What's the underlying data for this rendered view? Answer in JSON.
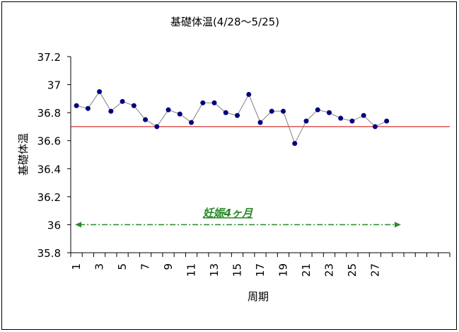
{
  "chart_data": {
    "type": "line",
    "title": "基礎体温(4/28〜5/25)",
    "xlabel": "周期",
    "ylabel": "基礎体温",
    "ylim": [
      35.8,
      37.2
    ],
    "yticks": [
      "35.8",
      "36",
      "36.2",
      "36.4",
      "36.6",
      "36.8",
      "37",
      "37.2"
    ],
    "xlim": [
      1,
      33
    ],
    "xticks": [
      "1",
      "3",
      "5",
      "7",
      "9",
      "11",
      "13",
      "15",
      "17",
      "19",
      "21",
      "23",
      "25",
      "27"
    ],
    "grid": false,
    "legend": "none",
    "series": [
      {
        "x": [
          1,
          2,
          3,
          4,
          5,
          6,
          7,
          8,
          9,
          10,
          11,
          12,
          13,
          14,
          15,
          16,
          17,
          18,
          19,
          20,
          21,
          22,
          23,
          24,
          25,
          26,
          27,
          28
        ],
        "values": [
          36.85,
          36.83,
          36.95,
          36.81,
          36.88,
          36.85,
          36.75,
          36.7,
          36.82,
          36.79,
          36.73,
          36.87,
          36.87,
          36.8,
          36.78,
          36.93,
          36.73,
          36.81,
          36.81,
          36.58,
          36.74,
          36.82,
          36.8,
          36.76,
          36.74,
          36.78,
          36.7,
          36.74
        ],
        "color": "#000080",
        "line_color": "#808080"
      }
    ],
    "reference_line": {
      "value": 36.7,
      "color": "#cc0000"
    },
    "annotation": {
      "text": "妊娠4ヶ月",
      "color": "#2a8a2a",
      "arrow_y": 36.0,
      "arrow_x_start": 1,
      "arrow_x_end": 29
    }
  }
}
